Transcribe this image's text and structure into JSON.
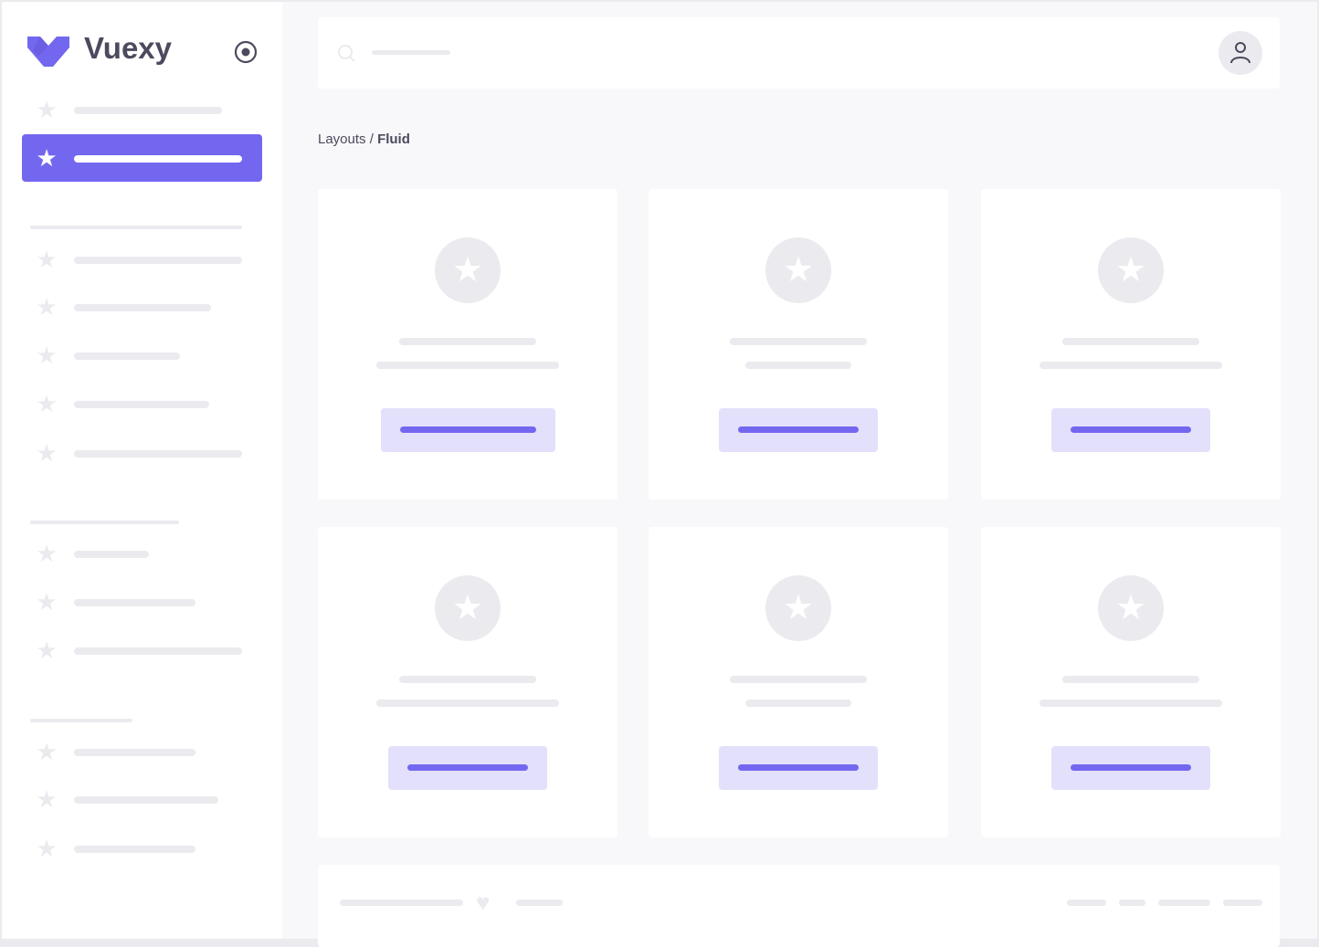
{
  "brand": {
    "name": "Vuexy"
  },
  "breadcrumb": {
    "parent": "Layouts",
    "separator": " / ",
    "current": "Fluid"
  },
  "colors": {
    "primary": "#7367f0",
    "primary_light": "#e3e0fc",
    "skeleton": "#ebebef",
    "background": "#f8f8fa",
    "text": "#4b4a5e"
  },
  "icons": {
    "menu_item": "star-icon",
    "toggle": "radio-circle-icon",
    "search": "search-icon",
    "user": "user-icon",
    "footer": "heart-icon"
  },
  "sidebar": {
    "active_index": 1
  }
}
